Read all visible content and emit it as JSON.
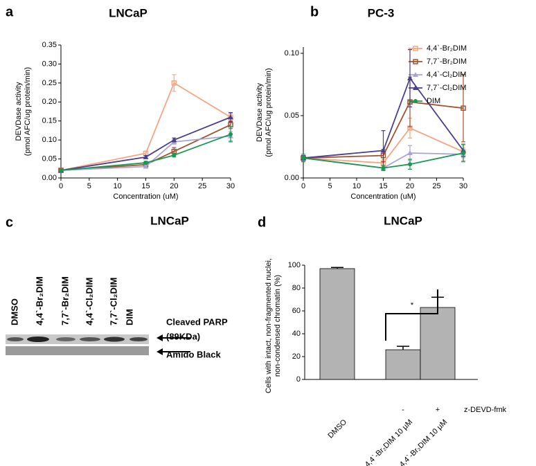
{
  "chart_data": [
    {
      "panel": "a",
      "type": "line",
      "title": "LNCaP",
      "xlabel": "Concentration (uM)",
      "ylabel": [
        "DEVDase activity",
        "(pmol AFC/ug protein/min)"
      ],
      "x": [
        0,
        15,
        20,
        30
      ],
      "xlim": [
        0,
        30
      ],
      "xticks": [
        0,
        5,
        10,
        15,
        20,
        25,
        30
      ],
      "ylim": [
        0,
        0.35
      ],
      "yticks": [
        {
          "value": 0,
          "label": "0.00"
        },
        {
          "value": 0.05,
          "label": "0.05"
        },
        {
          "value": 0.1,
          "label": "0.10"
        },
        {
          "value": 0.15,
          "label": "0.15"
        },
        {
          "value": 0.2,
          "label": "0.20"
        },
        {
          "value": 0.25,
          "label": "0.25"
        },
        {
          "value": 0.3,
          "label": "0.30"
        },
        {
          "value": 0.35,
          "label": "0.35"
        }
      ],
      "series": [
        {
          "color": "#f4a582",
          "marker": "square",
          "values": [
            0.02,
            0.065,
            0.25,
            0.16
          ],
          "errors": [
            0.002,
            0.005,
            0.022,
            0.01
          ]
        },
        {
          "color": "#a0522d",
          "marker": "square",
          "values": [
            0.02,
            0.035,
            0.07,
            0.14
          ],
          "errors": [
            0.002,
            0.003,
            0.01,
            0.01
          ]
        },
        {
          "color": "#a9a3d6",
          "marker": "triangle",
          "values": [
            0.02,
            0.03,
            0.095,
            0.11
          ],
          "errors": [
            0.002,
            0.004,
            0.006,
            0.012
          ]
        },
        {
          "color": "#4b3d8f",
          "marker": "triangle",
          "values": [
            0.02,
            0.055,
            0.1,
            0.16
          ],
          "errors": [
            0.002,
            0.004,
            0.005,
            0.012
          ]
        },
        {
          "color": "#1a9850",
          "marker": "circle",
          "values": [
            0.02,
            0.04,
            0.06,
            0.115
          ],
          "errors": [
            0.002,
            0.004,
            0.005,
            0.02
          ]
        }
      ]
    },
    {
      "panel": "b",
      "type": "line",
      "title": "PC-3",
      "xlabel": "Concentration (uM)",
      "ylabel": [
        "DEVDase activity",
        "(pmol AFC/ug protein/min)"
      ],
      "x": [
        0,
        15,
        20,
        30
      ],
      "xlim": [
        0,
        30
      ],
      "xticks": [
        0,
        5,
        10,
        15,
        20,
        25,
        30
      ],
      "ylim": [
        0,
        0.105
      ],
      "yticks": [
        {
          "value": 0,
          "label": "0.00"
        },
        {
          "value": 0.05,
          "label": "0.05"
        },
        {
          "value": 0.1,
          "label": "0.10"
        }
      ],
      "series": [
        {
          "name": "4,4`-Br₂DIM",
          "color": "#f4a582",
          "marker": "square",
          "values": [
            0.016,
            0.012,
            0.04,
            0.021
          ],
          "errors": [
            0.002,
            0.003,
            0.008,
            0.005
          ]
        },
        {
          "name": "7,7`-Br₂DIM",
          "color": "#a0522d",
          "marker": "square",
          "values": [
            0.016,
            0.018,
            0.061,
            0.056
          ],
          "errors": [
            0.002,
            0.005,
            0.02,
            0.027
          ]
        },
        {
          "name": "4,4`-Cl₂DIM",
          "color": "#a9a3d6",
          "marker": "triangle",
          "values": [
            0.016,
            0.008,
            0.02,
            0.019
          ],
          "errors": [
            0.002,
            0.002,
            0.006,
            0.005
          ]
        },
        {
          "name": "7,7`-Cl₂DIM",
          "color": "#4b3d8f",
          "marker": "triangle",
          "values": [
            0.016,
            0.022,
            0.08,
            0.022
          ],
          "errors": [
            0.002,
            0.016,
            0.023,
            0.005
          ]
        },
        {
          "name": "DIM",
          "color": "#1a9850",
          "marker": "circle",
          "values": [
            0.016,
            0.008,
            0.011,
            0.02
          ],
          "errors": [
            0.003,
            0.002,
            0.004,
            0.007
          ]
        }
      ]
    },
    {
      "panel": "d",
      "type": "bar",
      "title": "LNCaP",
      "ylabel": [
        "Cells with intact, non-fragmented nuclei,",
        "non-condensed chromatin (%)"
      ],
      "categories": [
        "DMSO",
        "4,4`-Br₂DIM 10 µM",
        "4,4`-Br₂DIM 10 µM"
      ],
      "values": [
        97,
        26,
        63
      ],
      "errors": [
        1,
        3,
        9
      ],
      "color": "#b3b3b3",
      "ylim": [
        0,
        100
      ],
      "yticks": [
        0,
        20,
        40,
        60,
        80,
        100
      ],
      "annotations": {
        "minus": "-",
        "plus": "+",
        "treatment": "z-DEVD-fmk",
        "significance": "*"
      }
    }
  ],
  "blot": {
    "panel": "c",
    "title": "LNCaP",
    "lanes": [
      "DMSO",
      "4,4`-Br₂DIM",
      "7,7`-Br₂DIM",
      "4,4`-Cl₂DIM",
      "7,7`-Cl₂DIM",
      "DIM"
    ],
    "band_labels": [
      "Cleaved PARP",
      "(89KDa)",
      "Amido Black"
    ]
  }
}
